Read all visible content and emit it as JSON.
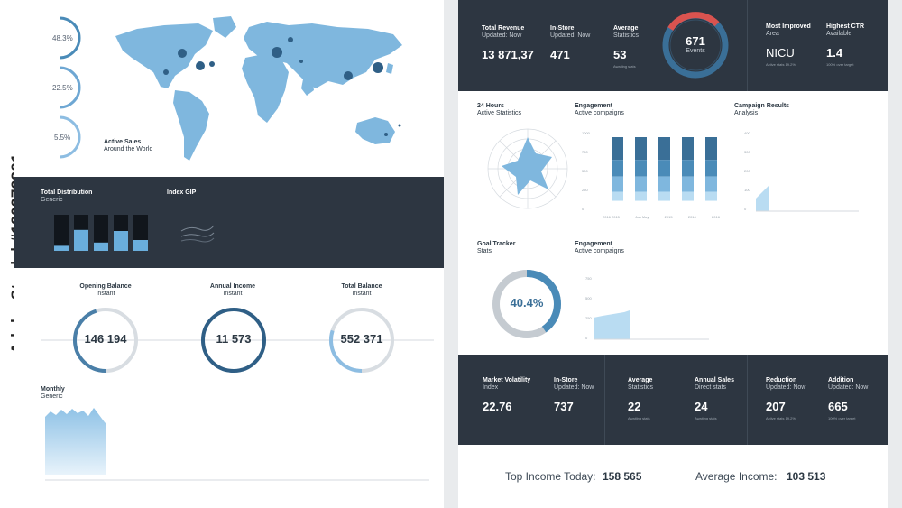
{
  "watermark": "Adobe Stock | #180372301",
  "sales": {
    "pcts": [
      "48.3%",
      "22.5%",
      "5.5%"
    ],
    "title": "Active Sales",
    "subtitle": "Around the World"
  },
  "distribution": {
    "title": "Total Distribution",
    "subtitle": "Generic",
    "bars": [
      0.14,
      0.58,
      0.23,
      0.55,
      0.3
    ]
  },
  "index": {
    "title": "Index GIP"
  },
  "balances": [
    {
      "title": "Opening Balance",
      "subtitle": "Instant",
      "value": "146 194",
      "progress": 0.45
    },
    {
      "title": "Annual Income",
      "subtitle": "Instant",
      "value": "11 573",
      "progress": 1.0
    },
    {
      "title": "Total Balance",
      "subtitle": "Instant",
      "value": "552 371",
      "progress": 0.3
    }
  ],
  "monthly": {
    "title": "Monthly",
    "subtitle": "Generic"
  },
  "top": {
    "revenue": {
      "title": "Total Revenue",
      "subtitle": "Updated: Now",
      "value": "13 871,37"
    },
    "instore": {
      "title": "In-Store",
      "subtitle": "Updated: Now",
      "value": "471"
    },
    "average": {
      "title": "Average",
      "subtitle": "Statistics",
      "value": "53",
      "note": "Awaiting stats"
    },
    "events": {
      "value": "671",
      "label": "Events"
    },
    "improved": {
      "title": "Most Improved",
      "subtitle": "Area",
      "value": "NICU",
      "note": "Active stats 19.2%"
    },
    "ctr": {
      "title": "Highest CTR",
      "subtitle": "Available",
      "value": "1.4",
      "note": "100% over target"
    }
  },
  "hours": {
    "title": "24 Hours",
    "subtitle": "Active Statistics"
  },
  "engagement1": {
    "title": "Engagement",
    "subtitle": "Active compaigns",
    "yticks": [
      "1000",
      "750",
      "500",
      "250",
      "0"
    ],
    "xticks": [
      "2016 2015",
      "Jan May",
      "2015",
      "2014",
      "2016"
    ]
  },
  "campaign": {
    "title": "Campaign Results",
    "subtitle": "Analysis",
    "yticks": [
      "400",
      "300",
      "200",
      "100",
      "0"
    ]
  },
  "goal": {
    "title": "Goal Tracker",
    "subtitle": "Stats",
    "value": "40.4%",
    "progress": 0.404
  },
  "engagement2": {
    "title": "Engagement",
    "subtitle": "Active compaigns",
    "yticks": [
      "750",
      "500",
      "250",
      "0"
    ]
  },
  "bottom": [
    {
      "title": "Market Volatility",
      "subtitle": "Index",
      "value": "22.76",
      "note": ""
    },
    {
      "title": "In-Store",
      "subtitle": "Updated: Now",
      "value": "737",
      "note": ""
    },
    {
      "title": "Average",
      "subtitle": "Statistics",
      "value": "22",
      "note": "Awaiting stats"
    },
    {
      "title": "Annual Sales",
      "subtitle": "Direct stats",
      "value": "24",
      "note": "Awaiting stats"
    },
    {
      "title": "Reduction",
      "subtitle": "Updated: Now",
      "value": "207",
      "note": "Active stats 19.2%"
    },
    {
      "title": "Addition",
      "subtitle": "Updated: Now",
      "value": "665",
      "note": "100% over target"
    }
  ],
  "income": {
    "top_label": "Top Income Today:",
    "top_value": "158 565",
    "avg_label": "Average Income:",
    "avg_value": "103 513"
  },
  "colors": {
    "dark": "#2d3641",
    "accent": "#4a8bb8",
    "light": "#9dc7e5",
    "red": "#d9534f"
  }
}
